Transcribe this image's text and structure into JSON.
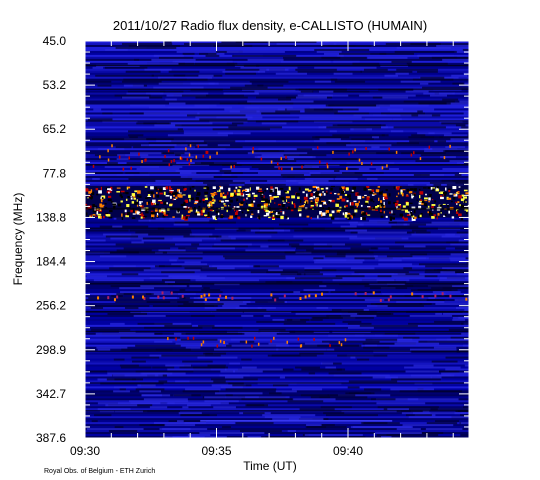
{
  "title": "2011/10/27  Radio flux density, e-CALLISTO (HUMAIN)",
  "credit": "Royal Obs. of Belgium - ETH Zurich",
  "chart_data": {
    "type": "heatmap",
    "title": "2011/10/27  Radio flux density, e-CALLISTO (HUMAIN)",
    "xlabel": "Time (UT)",
    "ylabel": "Frequency (MHz)",
    "x_tick_labels": [
      "09:30",
      "09:35",
      "09:40"
    ],
    "x_tick_minutes": [
      0,
      5,
      10
    ],
    "xlim_minutes": [
      0,
      14.6
    ],
    "y_tick_labels": [
      "45.0",
      "53.2",
      "65.2",
      "77.8",
      "138.8",
      "184.4",
      "256.2",
      "298.9",
      "342.7",
      "387.6"
    ],
    "ylim": [
      "45.0",
      "387.6"
    ],
    "y_axis_inverted": true,
    "colormap": "blue-black-red-yellow-white",
    "bright_bands": [
      {
        "frequency_range": "about 120-150 MHz",
        "description": "strong persistent interference band"
      },
      {
        "frequency": "about 256 MHz",
        "description": "weaker bright spots"
      },
      {
        "frequency": "about 298.9 MHz",
        "description": "weaker bright spots near 09:34"
      }
    ]
  },
  "colors": {
    "background": "#000080",
    "mid": "#1a1ad8",
    "dark": "#000000",
    "hot1": "#c00000",
    "hot2": "#ff8000",
    "hot3": "#ffff40",
    "hot4": "#ffffff"
  }
}
